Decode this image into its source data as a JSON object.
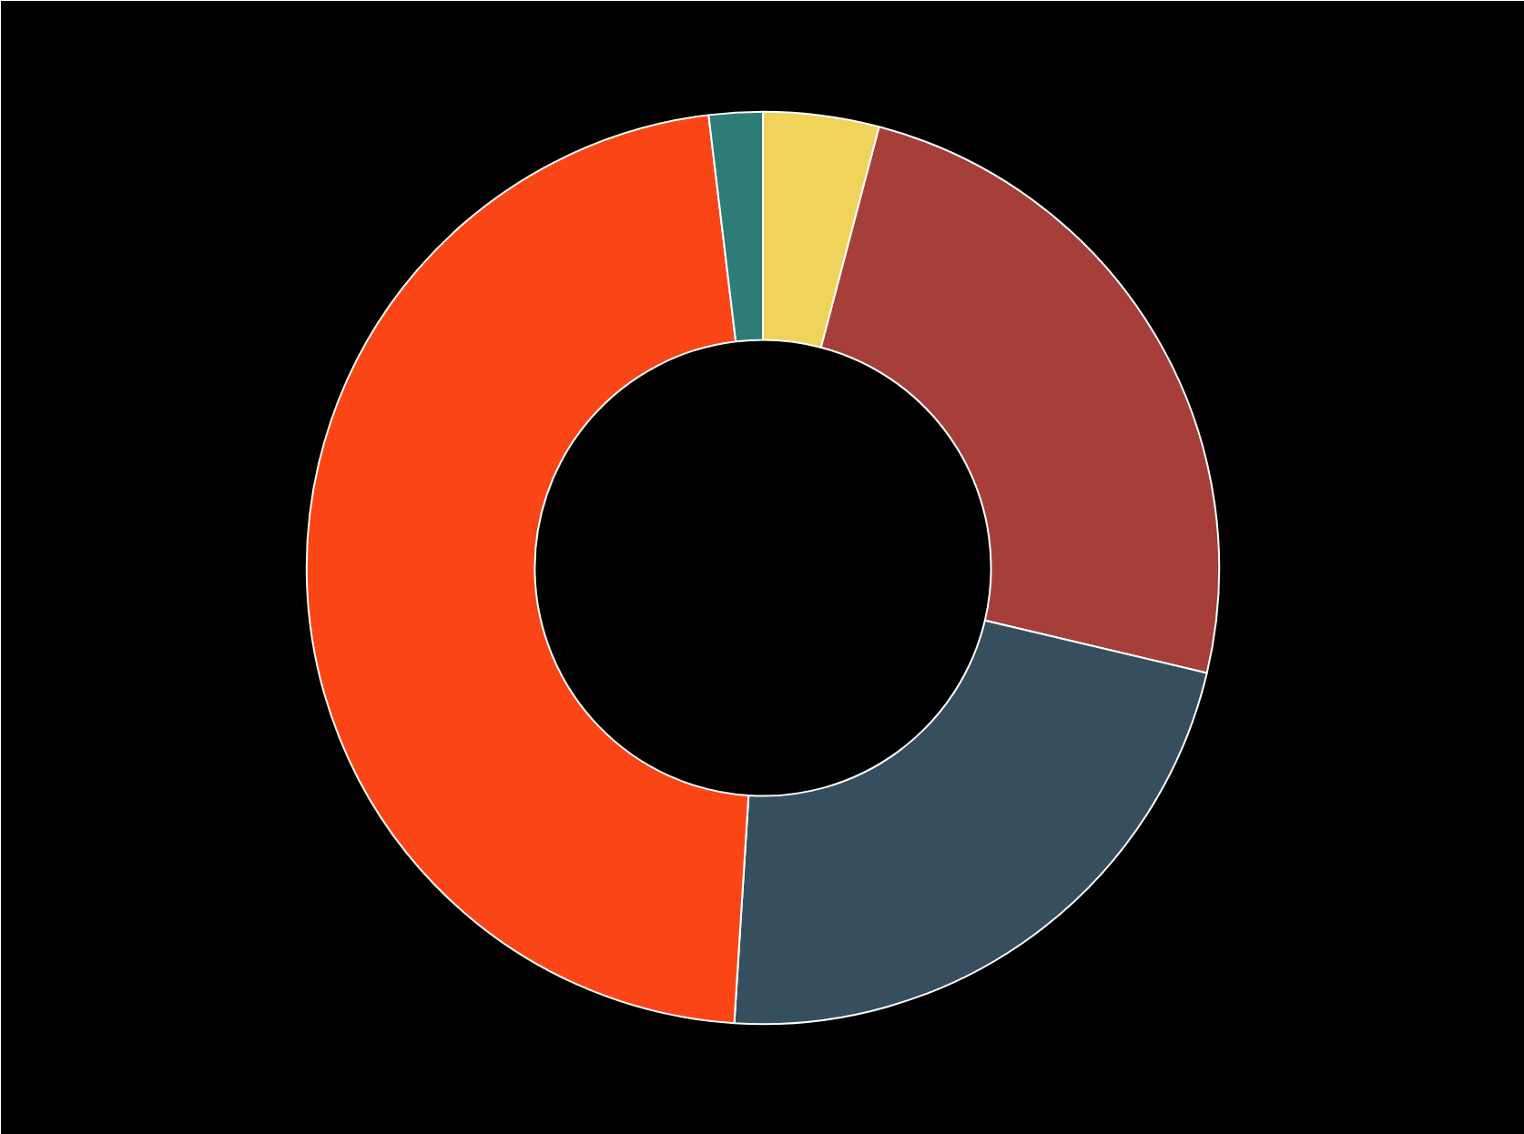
{
  "chart_data": {
    "type": "donut",
    "categories": [
      null,
      null,
      null,
      null,
      null
    ],
    "values": [
      4.1,
      24.6,
      22.3,
      47.1,
      1.9
    ],
    "colors": [
      "#efd35a",
      "#a63f3a",
      "#364f5f",
      "#fa4616",
      "#2e7d78"
    ]
  }
}
